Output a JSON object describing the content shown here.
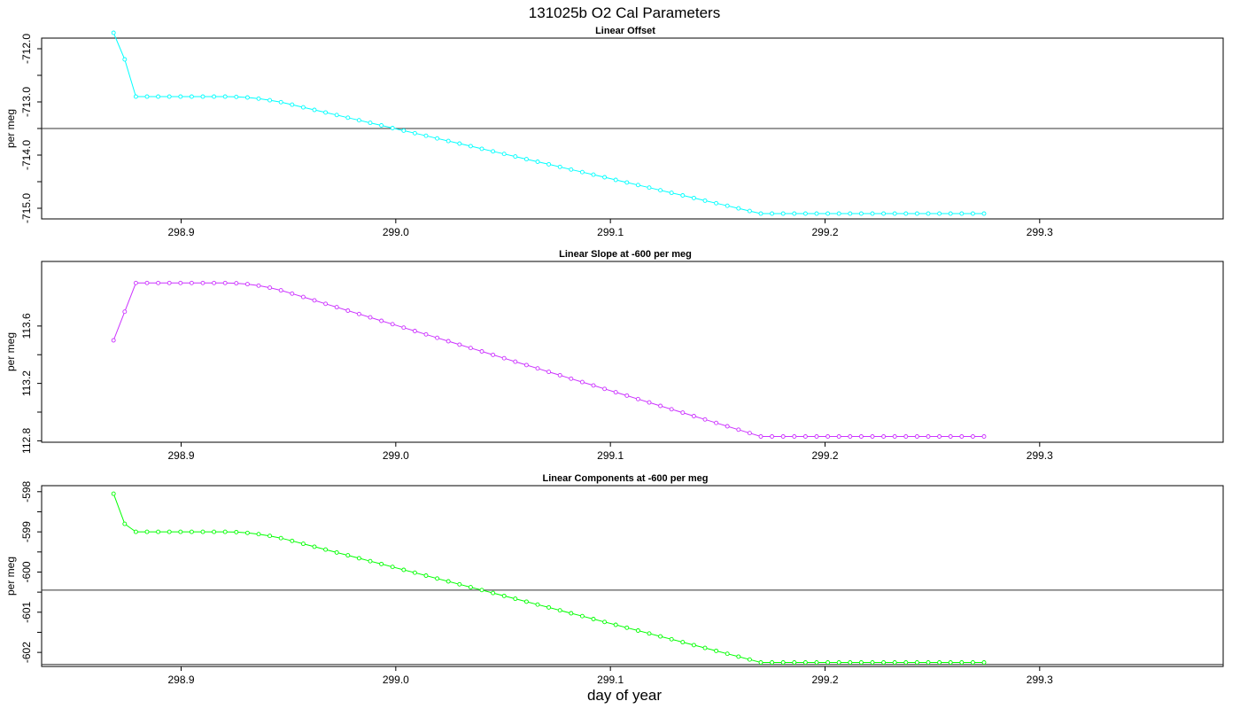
{
  "title": "131025b   O2 Cal Parameters",
  "x_axis_label": "day of year",
  "chart_data": [
    {
      "type": "line",
      "title": "Linear Offset",
      "ylabel": "per meg",
      "color": "#00ffff",
      "xlim": [
        298.835,
        299.3855
      ],
      "ylim": [
        -715.2,
        -711.8
      ],
      "x_ticks": [
        "298.9",
        "299.0",
        "299.1",
        "299.2",
        "299.3"
      ],
      "y_ticks": [
        "-712.0",
        "-713.0",
        "-714.0",
        "-715.0"
      ],
      "reference_line": -713.5,
      "first_points": [
        -711.7,
        -712.2
      ],
      "plateau": -712.9,
      "plateau_end_index": 10,
      "end_value": -715.1,
      "ramp_end_index": 58,
      "n_points": 79,
      "x_start": 298.8685,
      "x_step": 0.0052
    },
    {
      "type": "line",
      "title": "Linear Slope at -600 per meg",
      "ylabel": "per meg",
      "color": "#cc33ff",
      "xlim": [
        298.835,
        299.3855
      ],
      "ylim": [
        112.79,
        114.05
      ],
      "x_ticks": [
        "298.9",
        "299.0",
        "299.1",
        "299.2",
        "299.3"
      ],
      "y_ticks": [
        "112.8",
        "113.2",
        "113.6"
      ],
      "reference_line": null,
      "first_points": [
        113.5,
        113.7
      ],
      "plateau": 113.9,
      "plateau_end_index": 10,
      "end_value": 112.83,
      "ramp_end_index": 58,
      "n_points": 79,
      "x_start": 298.8685,
      "x_step": 0.0052
    },
    {
      "type": "line",
      "title": "Linear Components at -600 per meg",
      "ylabel": "per meg",
      "color": "#00ff00",
      "xlim": [
        298.835,
        299.3855
      ],
      "ylim": [
        -602.35,
        -597.85
      ],
      "x_ticks": [
        "298.9",
        "299.0",
        "299.1",
        "299.2",
        "299.3"
      ],
      "y_ticks": [
        "-598",
        "-599",
        "-600",
        "-601",
        "-602"
      ],
      "reference_line": -600.45,
      "reference_line_2": -602.3,
      "first_points": [
        -598.05,
        -598.8
      ],
      "plateau": -599.0,
      "plateau_end_index": 10,
      "end_value": -602.25,
      "ramp_end_index": 58,
      "n_points": 79,
      "x_start": 298.8685,
      "x_step": 0.0052
    }
  ]
}
